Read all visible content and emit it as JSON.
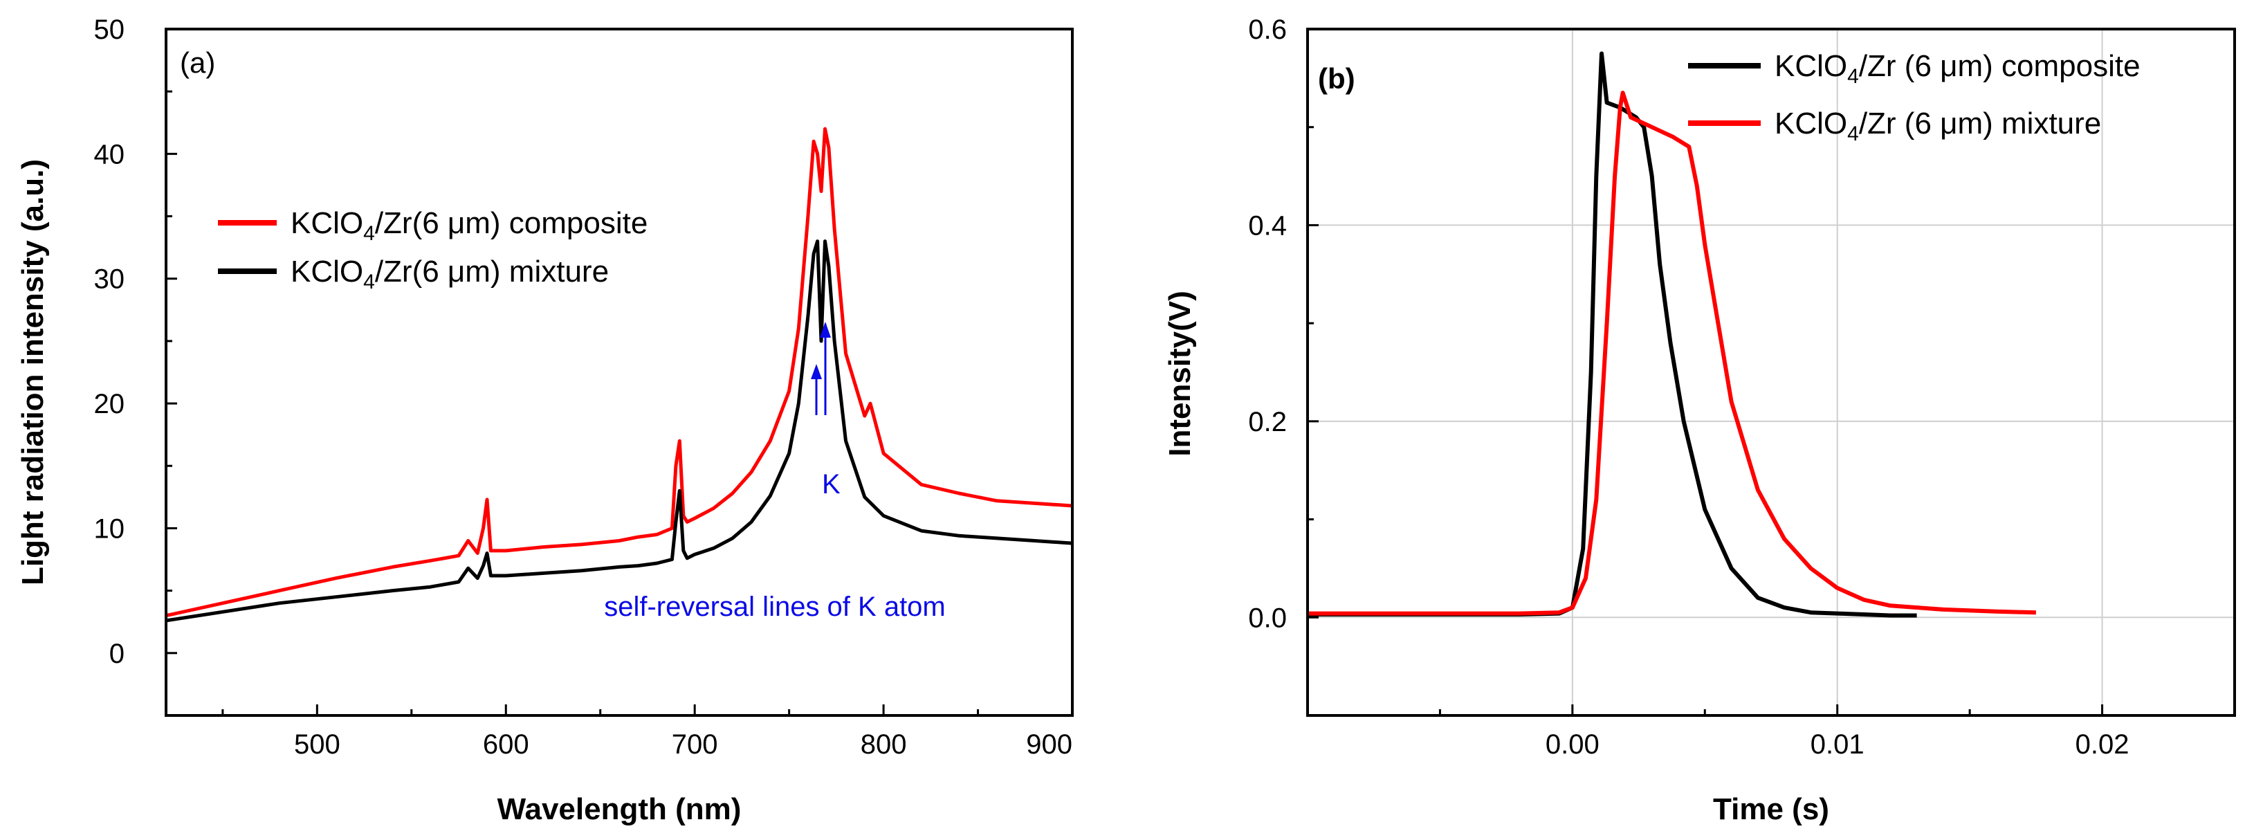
{
  "chart_data": [
    {
      "type": "line",
      "panel_label": "(a)",
      "xlabel": "Wavelength (nm)",
      "ylabel": "Light radiation intensity (a.u.)",
      "xlim": [
        420,
        900
      ],
      "ylim": [
        -5,
        50
      ],
      "xticks": [
        500,
        600,
        700,
        800,
        900
      ],
      "yticks": [
        0,
        10,
        20,
        30,
        40,
        50
      ],
      "legend_position": "center-left",
      "series": [
        {
          "name": "KClO4/Zr(6 μm) composite",
          "color": "#ff0000",
          "x": [
            420,
            450,
            480,
            510,
            540,
            560,
            575,
            580,
            585,
            588,
            590,
            592,
            600,
            620,
            640,
            660,
            670,
            680,
            688,
            690,
            692,
            694,
            696,
            700,
            710,
            720,
            730,
            740,
            750,
            755,
            760,
            763,
            765,
            767,
            769,
            771,
            774,
            780,
            790,
            793,
            800,
            820,
            840,
            860,
            880,
            900
          ],
          "values": [
            3.0,
            4.0,
            5.0,
            6.0,
            6.9,
            7.4,
            7.8,
            9.0,
            8.0,
            10.0,
            12.3,
            8.2,
            8.2,
            8.5,
            8.7,
            9.0,
            9.3,
            9.5,
            10.0,
            15.0,
            17.0,
            11.0,
            10.5,
            10.8,
            11.6,
            12.8,
            14.5,
            17.0,
            21.0,
            26.0,
            35.0,
            41.0,
            40.0,
            37.0,
            42.0,
            40.5,
            34.0,
            24.0,
            19.0,
            20.0,
            16.0,
            13.5,
            12.8,
            12.2,
            12.0,
            11.8
          ]
        },
        {
          "name": "KClO4/Zr(6 μm) mixture",
          "color": "#000000",
          "x": [
            420,
            450,
            480,
            510,
            540,
            560,
            575,
            580,
            585,
            588,
            590,
            592,
            600,
            620,
            640,
            660,
            670,
            680,
            688,
            690,
            692,
            694,
            696,
            700,
            710,
            720,
            730,
            740,
            750,
            755,
            760,
            763,
            765,
            767,
            769,
            771,
            774,
            780,
            790,
            800,
            820,
            840,
            860,
            880,
            900
          ],
          "values": [
            2.6,
            3.3,
            4.0,
            4.5,
            5.0,
            5.3,
            5.7,
            6.8,
            6.0,
            7.0,
            8.0,
            6.2,
            6.2,
            6.4,
            6.6,
            6.9,
            7.0,
            7.2,
            7.5,
            10.5,
            13.0,
            8.2,
            7.6,
            7.9,
            8.4,
            9.2,
            10.5,
            12.6,
            16.0,
            20.0,
            27.0,
            32.0,
            33.0,
            25.0,
            33.0,
            31.0,
            25.0,
            17.0,
            12.5,
            11.0,
            9.8,
            9.4,
            9.2,
            9.0,
            8.8
          ]
        }
      ],
      "annotations": {
        "arrow_label": "K",
        "note": "self-reversal lines of K atom",
        "color": "#0a0ae6"
      }
    },
    {
      "type": "line",
      "panel_label": "(b)",
      "xlabel": "Time (s)",
      "ylabel": "Intensity(V)",
      "xlim": [
        -0.01,
        0.025
      ],
      "ylim": [
        -0.1,
        0.6
      ],
      "xticks": [
        "0.00",
        "0.01",
        "0.02"
      ],
      "yticks": [
        "0.0",
        "0.2",
        "0.4",
        "0.6"
      ],
      "grid": true,
      "legend_position": "top-right",
      "series": [
        {
          "name": "KClO4/Zr (6 μm) composite",
          "color": "#000000",
          "x": [
            -0.01,
            -0.002,
            -0.0005,
            0.0,
            0.0004,
            0.0007,
            0.0009,
            0.0011,
            0.0013,
            0.0018,
            0.0024,
            0.0027,
            0.003,
            0.0033,
            0.0037,
            0.0042,
            0.005,
            0.006,
            0.007,
            0.008,
            0.009,
            0.01,
            0.011,
            0.012,
            0.013
          ],
          "values": [
            0.003,
            0.003,
            0.004,
            0.01,
            0.07,
            0.25,
            0.45,
            0.575,
            0.525,
            0.52,
            0.51,
            0.5,
            0.45,
            0.36,
            0.28,
            0.2,
            0.11,
            0.05,
            0.02,
            0.01,
            0.005,
            0.004,
            0.003,
            0.002,
            0.002
          ]
        },
        {
          "name": "KClO4/Zr (6 μm) mixture",
          "color": "#ff0000",
          "x": [
            -0.01,
            -0.002,
            -0.0005,
            0.0,
            0.0005,
            0.0009,
            0.0013,
            0.0016,
            0.0018,
            0.0019,
            0.0022,
            0.003,
            0.0038,
            0.0044,
            0.0047,
            0.005,
            0.0055,
            0.006,
            0.007,
            0.008,
            0.009,
            0.01,
            0.011,
            0.012,
            0.014,
            0.016,
            0.0175
          ],
          "values": [
            0.004,
            0.004,
            0.005,
            0.01,
            0.04,
            0.12,
            0.3,
            0.45,
            0.52,
            0.535,
            0.51,
            0.5,
            0.49,
            0.48,
            0.44,
            0.38,
            0.3,
            0.22,
            0.13,
            0.08,
            0.05,
            0.03,
            0.018,
            0.012,
            0.008,
            0.006,
            0.005
          ]
        }
      ]
    }
  ]
}
